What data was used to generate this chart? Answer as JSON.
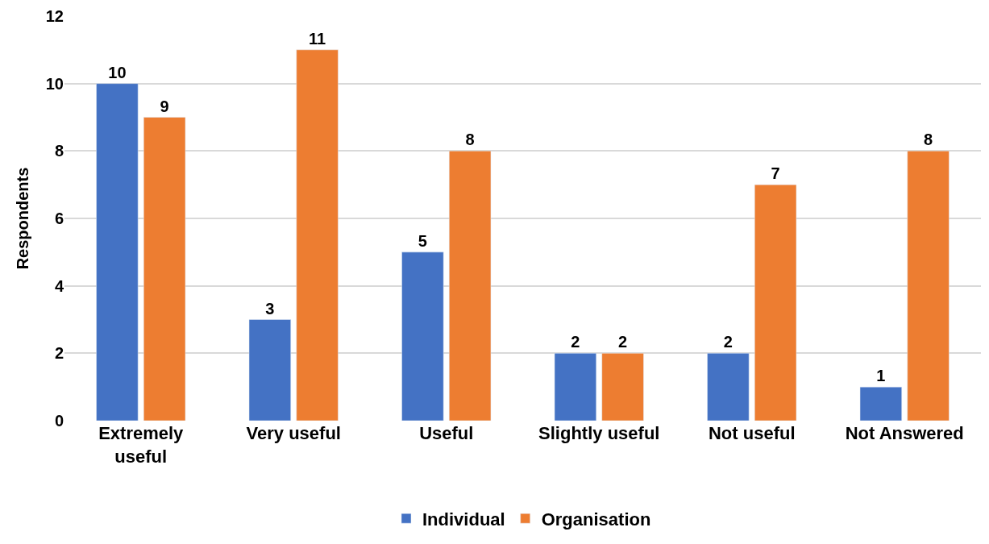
{
  "chart_data": {
    "type": "bar",
    "ylabel": "Respondents",
    "categories": [
      "Extremely useful",
      "Very useful",
      "Useful",
      "Slightly useful",
      "Not useful",
      "Not Answered"
    ],
    "series": [
      {
        "name": "Individual",
        "color": "#4472c4",
        "values": [
          10,
          3,
          5,
          2,
          2,
          1
        ]
      },
      {
        "name": "Organisation",
        "color": "#ed7d31",
        "values": [
          9,
          11,
          8,
          2,
          7,
          8
        ]
      }
    ],
    "ylim": [
      0,
      12
    ],
    "yticks": [
      0,
      2,
      4,
      6,
      8,
      10,
      12
    ],
    "grid": "y",
    "legend": "bottom",
    "data_labels": true
  }
}
